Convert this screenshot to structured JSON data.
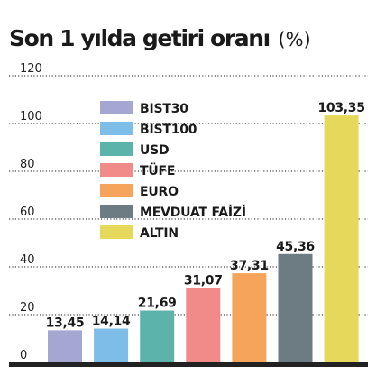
{
  "chart_data": {
    "type": "bar",
    "title": "Son 1 yılda getiri oranı",
    "unit": "(%)",
    "categories": [
      "BIST30",
      "BIST100",
      "USD",
      "TÜFE",
      "EURO",
      "MEVDUAT FAİZİ",
      "ALTIN"
    ],
    "values": [
      13.45,
      14.14,
      21.69,
      31.07,
      37.31,
      45.36,
      103.35
    ],
    "value_labels": [
      "13,45",
      "14,14",
      "21,69",
      "31,07",
      "37,31",
      "45,36",
      "103,35"
    ],
    "colors": [
      "#a5a6d2",
      "#7ebde8",
      "#5bb3aa",
      "#f18b8a",
      "#f6a35c",
      "#6d7b82",
      "#e6d85b"
    ],
    "ylim": [
      0,
      120
    ],
    "yticks": [
      0,
      20,
      40,
      60,
      80,
      100,
      120
    ],
    "ytick_labels": [
      "0",
      "20",
      "40",
      "60",
      "80",
      "100",
      "120"
    ],
    "grid": true,
    "legend": "top-left"
  }
}
